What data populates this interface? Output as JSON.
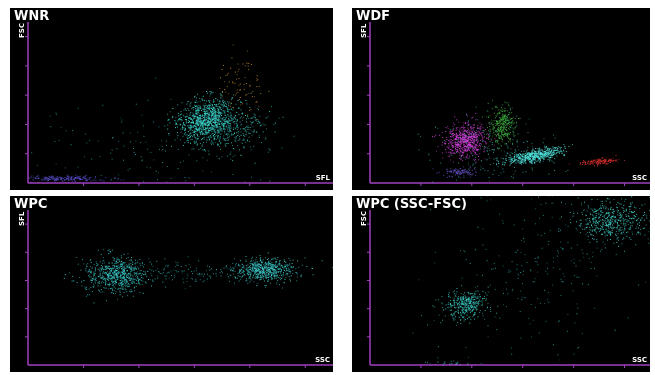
{
  "panels": [
    {
      "title": "WNR",
      "y_label": "FSC",
      "x_label": "SFL"
    },
    {
      "title": "WDF",
      "y_label": "SFL",
      "x_label": "SSC"
    },
    {
      "title": "WPC",
      "y_label": "SFL",
      "x_label": "SSC"
    },
    {
      "title": "WPC (SSC-FSC)",
      "y_label": "FSC",
      "x_label": "SSC"
    }
  ]
}
